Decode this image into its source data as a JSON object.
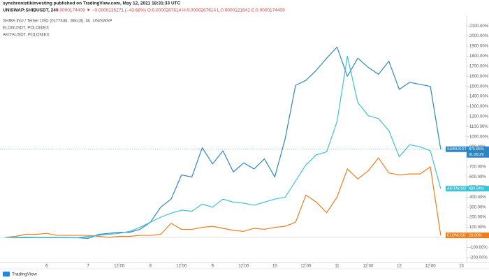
{
  "chart_data": {
    "type": "line",
    "published": "synchronistikinvesting published on TradingView.com, May 12, 2021 18:31:33 UTC",
    "symbol_line": "UNISWAP:SHIBUSDT, 240",
    "quote": "0.0000174409 ▼ −0.0000135271 (−43.68%) O:0.0000267614 H:0.0000267614 L:0.0000121641 C:0.0000174409",
    "countdown": "01:28:29",
    "brand": "TradingView",
    "x": [
      0,
      1,
      2,
      3,
      4,
      5,
      6,
      7,
      8,
      9,
      10,
      11,
      12,
      13,
      14,
      15,
      16,
      17,
      18,
      19,
      20,
      21,
      22,
      23,
      24,
      25,
      26,
      27,
      28,
      29,
      30,
      31,
      32,
      33,
      34,
      35,
      36,
      37,
      38,
      39,
      40,
      41,
      42
    ],
    "xlim": [
      -0.5,
      44.5
    ],
    "xticks": [
      {
        "value": 4,
        "label": "6"
      },
      {
        "value": 8,
        "label": "7"
      },
      {
        "value": 11,
        "label": "12:00"
      },
      {
        "value": 14,
        "label": "8"
      },
      {
        "value": 17,
        "label": "12:00"
      },
      {
        "value": 20,
        "label": "9"
      },
      {
        "value": 23,
        "label": "12:00"
      },
      {
        "value": 26,
        "label": "10"
      },
      {
        "value": 29,
        "label": "12:00"
      },
      {
        "value": 32,
        "label": "11"
      },
      {
        "value": 35,
        "label": "12:00"
      },
      {
        "value": 38,
        "label": "12"
      },
      {
        "value": 41,
        "label": "12:00"
      },
      {
        "value": 44,
        "label": "13"
      }
    ],
    "ylim": [
      -250,
      2150
    ],
    "yticks": [
      {
        "value": 2100,
        "label": "2100.00%"
      },
      {
        "value": 2000,
        "label": "2000.00%"
      },
      {
        "value": 1900,
        "label": "1900.00%"
      },
      {
        "value": 1800,
        "label": "1800.00%"
      },
      {
        "value": 1700,
        "label": "1700.00%"
      },
      {
        "value": 1600,
        "label": "1600.00%"
      },
      {
        "value": 1500,
        "label": "1500.00%"
      },
      {
        "value": 1400,
        "label": "1400.00%"
      },
      {
        "value": 1300,
        "label": "1300.00%"
      },
      {
        "value": 1200,
        "label": "1200.00%"
      },
      {
        "value": 1100,
        "label": "1100.00%"
      },
      {
        "value": 1000,
        "label": "1000.00%"
      },
      {
        "value": 900,
        "label": "900.00%"
      },
      {
        "value": 700,
        "label": "700.00%"
      },
      {
        "value": 600,
        "label": "600.00%"
      },
      {
        "value": 500,
        "label": "500.00%"
      },
      {
        "value": 400,
        "label": "400.00%"
      },
      {
        "value": 300,
        "label": "300.00%"
      },
      {
        "value": 200,
        "label": "200.00%"
      },
      {
        "value": 100,
        "label": "100.00%"
      },
      {
        "value": -100,
        "label": "-100.00%"
      },
      {
        "value": -200,
        "label": "-200.00%"
      }
    ],
    "series": [
      {
        "name": "SHIBA INU / Tether USD (0x773dd...68cc8), 4h, UNISWAP",
        "tag": "SHIBUSDT",
        "color": "#2e86c1",
        "values": [
          0,
          -2,
          -3,
          -2,
          -3,
          -2,
          -3,
          -4,
          -10,
          30,
          40,
          50,
          50,
          80,
          150,
          300,
          380,
          620,
          600,
          890,
          730,
          860,
          650,
          740,
          680,
          780,
          600,
          980,
          1510,
          1560,
          1660,
          1780,
          1890,
          1600,
          1780,
          1690,
          1620,
          1750,
          1470,
          1540,
          1520,
          1500,
          875.65
        ],
        "value_labels": [
          null,
          null,
          null,
          null,
          null,
          null,
          null,
          null,
          null,
          null,
          null,
          null,
          null,
          null,
          null,
          null,
          null,
          null,
          null,
          null,
          null,
          null,
          null,
          null,
          null,
          null,
          null,
          null,
          null,
          null,
          null,
          null,
          null,
          null,
          null,
          null,
          null,
          null,
          null,
          null,
          null,
          null,
          "875.65%"
        ]
      },
      {
        "name": "ELONUSDT, POLONIEX",
        "tag": "ELONUSDT",
        "color": "#f07d1a",
        "values": [
          0,
          10,
          30,
          30,
          40,
          20,
          20,
          20,
          20,
          10,
          0,
          10,
          10,
          20,
          20,
          30,
          140,
          80,
          80,
          100,
          110,
          90,
          70,
          60,
          90,
          80,
          100,
          110,
          150,
          420,
          350,
          245,
          400,
          680,
          580,
          660,
          790,
          640,
          620,
          630,
          630,
          700,
          20
        ],
        "value_labels": [
          null,
          null,
          null,
          null,
          null,
          null,
          null,
          null,
          null,
          null,
          null,
          null,
          null,
          null,
          null,
          null,
          null,
          null,
          null,
          null,
          null,
          null,
          null,
          null,
          null,
          null,
          null,
          null,
          null,
          null,
          null,
          null,
          null,
          null,
          null,
          null,
          null,
          null,
          null,
          null,
          null,
          null,
          "20.00%"
        ]
      },
      {
        "name": "AKITAUSDT, POLONIEX",
        "tag": "AKITAUSDT",
        "color": "#3cc3d4",
        "values": [
          0,
          0,
          1,
          0,
          -1,
          0,
          -1,
          -3,
          10,
          20,
          30,
          40,
          60,
          100,
          150,
          200,
          240,
          270,
          260,
          330,
          300,
          380,
          350,
          340,
          320,
          350,
          380,
          400,
          560,
          720,
          820,
          850,
          1150,
          1800,
          1340,
          1210,
          1180,
          1060,
          800,
          920,
          900,
          860,
          483.94
        ],
        "value_labels": [
          null,
          null,
          null,
          null,
          null,
          null,
          null,
          null,
          null,
          null,
          null,
          null,
          null,
          null,
          null,
          null,
          null,
          null,
          null,
          null,
          null,
          null,
          null,
          null,
          null,
          null,
          null,
          null,
          null,
          null,
          null,
          null,
          null,
          null,
          null,
          null,
          null,
          null,
          null,
          null,
          null,
          null,
          "483.94%"
        ]
      }
    ]
  }
}
